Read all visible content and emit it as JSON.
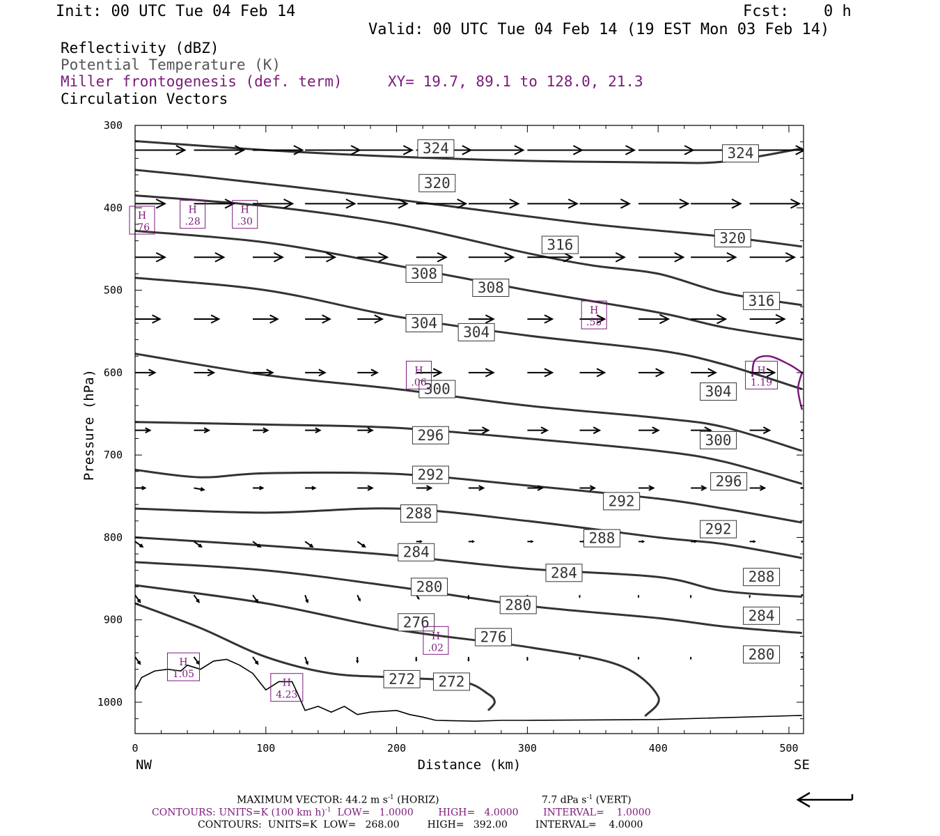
{
  "header": {
    "init": "Init: 00 UTC Tue 04 Feb 14",
    "fcst_label": "Fcst:",
    "fcst_value": "0 h",
    "valid": "Valid: 00 UTC Tue 04 Feb 14 (19 EST Mon 03 Feb 14)"
  },
  "fields": {
    "reflectivity": "Reflectivity (dBZ)",
    "theta": "Potential Temperature (K)",
    "miller": "Miller frontogenesis (def. term)",
    "xy": "XY=  19.7, 89.1 to 128.0, 21.3",
    "vectors": "Circulation Vectors"
  },
  "colors": {
    "theta": "#333333",
    "miller": "#7a1a7a",
    "text": "#000000"
  },
  "footer": {
    "max_vector": "MAXIMUM VECTOR:  44.2 m s",
    "max_vector_exp": "-1",
    "max_vector_horiz": " (HORIZ)",
    "max_vector_vert": "7.7 dPa s",
    "max_vector_vert_exp": "-1",
    "max_vector_vert_tail": " (VERT)",
    "contours1_a": "CONTOURS:  UNITS=K (100 km h)",
    "contours1_exp": "-1",
    "contours1_b": "  LOW=   1.0000        HIGH=   4.0000        INTERVAL=    1.0000",
    "contours2": "CONTOURS:  UNITS=K  LOW=   268.00         HIGH=   392.00         INTERVAL=    4.0000",
    "ref_arrow_icon": "reference-vector-arrow-icon"
  },
  "chart_data": {
    "type": "cross-section-contour",
    "xlabel": "Distance (km)",
    "ylabel": "Pressure (hPa)",
    "xlim": [
      0,
      510
    ],
    "ylim": [
      1040,
      300
    ],
    "x_ticks": [
      "0",
      "100",
      "200",
      "300",
      "400",
      "500"
    ],
    "y_ticks": [
      "300",
      "400",
      "500",
      "600",
      "700",
      "800",
      "900",
      "1000"
    ],
    "x_end_labels": {
      "left": "NW",
      "right": "SE"
    },
    "grid": false,
    "theta_contours": [
      {
        "theta": 324,
        "points": [
          [
            0,
            319
          ],
          [
            100,
            330
          ],
          [
            200,
            338
          ],
          [
            300,
            343
          ],
          [
            400,
            345
          ],
          [
            450,
            344
          ],
          [
            510,
            328
          ]
        ]
      },
      {
        "theta": 320,
        "points": [
          [
            0,
            354
          ],
          [
            50,
            362
          ],
          [
            150,
            380
          ],
          [
            250,
            400
          ],
          [
            350,
            420
          ],
          [
            450,
            435
          ],
          [
            510,
            447
          ]
        ]
      },
      {
        "theta": 316,
        "points": [
          [
            0,
            385
          ],
          [
            100,
            398
          ],
          [
            200,
            420
          ],
          [
            300,
            455
          ],
          [
            350,
            470
          ],
          [
            400,
            480
          ],
          [
            450,
            503
          ],
          [
            510,
            518
          ]
        ]
      },
      {
        "theta": 308,
        "points": [
          [
            0,
            428
          ],
          [
            100,
            442
          ],
          [
            200,
            470
          ],
          [
            300,
            500
          ],
          [
            400,
            527
          ],
          [
            450,
            545
          ],
          [
            510,
            560
          ]
        ]
      },
      {
        "theta": 304,
        "points": [
          [
            0,
            485
          ],
          [
            100,
            500
          ],
          [
            200,
            532
          ],
          [
            300,
            555
          ],
          [
            400,
            573
          ],
          [
            450,
            590
          ],
          [
            510,
            620
          ]
        ]
      },
      {
        "theta": 300,
        "points": [
          [
            0,
            577
          ],
          [
            100,
            603
          ],
          [
            200,
            620
          ],
          [
            300,
            640
          ],
          [
            400,
            655
          ],
          [
            450,
            666
          ],
          [
            510,
            695
          ]
        ]
      },
      {
        "theta": 296,
        "points": [
          [
            0,
            660
          ],
          [
            100,
            663
          ],
          [
            200,
            667
          ],
          [
            300,
            680
          ],
          [
            400,
            695
          ],
          [
            450,
            708
          ],
          [
            510,
            735
          ]
        ]
      },
      {
        "theta": 292,
        "points": [
          [
            0,
            718
          ],
          [
            50,
            727
          ],
          [
            100,
            722
          ],
          [
            200,
            723
          ],
          [
            300,
            737
          ],
          [
            400,
            753
          ],
          [
            450,
            765
          ],
          [
            510,
            782
          ]
        ]
      },
      {
        "theta": 288,
        "points": [
          [
            0,
            765
          ],
          [
            100,
            770
          ],
          [
            200,
            765
          ],
          [
            300,
            780
          ],
          [
            400,
            800
          ],
          [
            450,
            808
          ],
          [
            510,
            825
          ]
        ]
      },
      {
        "theta": 284,
        "points": [
          [
            0,
            800
          ],
          [
            100,
            810
          ],
          [
            200,
            822
          ],
          [
            300,
            838
          ],
          [
            400,
            848
          ],
          [
            450,
            865
          ],
          [
            510,
            872
          ]
        ]
      },
      {
        "theta": 280,
        "points": [
          [
            0,
            830
          ],
          [
            100,
            840
          ],
          [
            200,
            860
          ],
          [
            300,
            883
          ],
          [
            400,
            898
          ],
          [
            450,
            908
          ],
          [
            510,
            916
          ]
        ]
      },
      {
        "theta": 276,
        "points": [
          [
            0,
            858
          ],
          [
            100,
            880
          ],
          [
            200,
            912
          ],
          [
            300,
            933
          ],
          [
            370,
            955
          ],
          [
            400,
            993
          ],
          [
            390,
            1017
          ]
        ]
      },
      {
        "theta": 272,
        "points": [
          [
            0,
            880
          ],
          [
            50,
            910
          ],
          [
            100,
            945
          ],
          [
            150,
            965
          ],
          [
            200,
            970
          ],
          [
            250,
            975
          ],
          [
            270,
            990
          ],
          [
            275,
            1000
          ],
          [
            270,
            1010
          ]
        ]
      }
    ],
    "contour_labels": [
      {
        "text": "324",
        "x": 230,
        "p": 328
      },
      {
        "text": "324",
        "x": 463,
        "p": 334
      },
      {
        "text": "320",
        "x": 231,
        "p": 370
      },
      {
        "text": "316",
        "x": 325,
        "p": 445
      },
      {
        "text": "320",
        "x": 457,
        "p": 437
      },
      {
        "text": "316",
        "x": 479,
        "p": 513
      },
      {
        "text": "308",
        "x": 221,
        "p": 480
      },
      {
        "text": "308",
        "x": 272,
        "p": 497
      },
      {
        "text": "304",
        "x": 221,
        "p": 540
      },
      {
        "text": "304",
        "x": 261,
        "p": 551
      },
      {
        "text": "304",
        "x": 446,
        "p": 623
      },
      {
        "text": "300",
        "x": 231,
        "p": 620
      },
      {
        "text": "300",
        "x": 446,
        "p": 682
      },
      {
        "text": "296",
        "x": 226,
        "p": 676
      },
      {
        "text": "296",
        "x": 454,
        "p": 732
      },
      {
        "text": "292",
        "x": 226,
        "p": 724
      },
      {
        "text": "292",
        "x": 372,
        "p": 756
      },
      {
        "text": "292",
        "x": 446,
        "p": 790
      },
      {
        "text": "288",
        "x": 217,
        "p": 771
      },
      {
        "text": "288",
        "x": 357,
        "p": 801
      },
      {
        "text": "288",
        "x": 479,
        "p": 848
      },
      {
        "text": "284",
        "x": 215,
        "p": 818
      },
      {
        "text": "284",
        "x": 328,
        "p": 843
      },
      {
        "text": "284",
        "x": 479,
        "p": 895
      },
      {
        "text": "280",
        "x": 225,
        "p": 860
      },
      {
        "text": "280",
        "x": 293,
        "p": 882
      },
      {
        "text": "280",
        "x": 479,
        "p": 942
      },
      {
        "text": "276",
        "x": 215,
        "p": 903
      },
      {
        "text": "276",
        "x": 274,
        "p": 921
      },
      {
        "text": "272",
        "x": 204,
        "p": 972
      },
      {
        "text": "272",
        "x": 242,
        "p": 975
      }
    ],
    "frontogenesis_maxima": [
      {
        "label": "H",
        "value": ".76",
        "x": 3,
        "p": 415
      },
      {
        "label": "H",
        "value": ".28",
        "x": 44,
        "p": 408
      },
      {
        "label": "H",
        "value": ".30",
        "x": 84,
        "p": 408
      },
      {
        "label": "H",
        "value": ".55",
        "x": 351,
        "p": 530
      },
      {
        "label": "H",
        "value": ".06",
        "x": 217,
        "p": 603
      },
      {
        "label": "H",
        "value": "1.19",
        "x": 479,
        "p": 603
      },
      {
        "label": "H",
        "value": ".02",
        "x": 230,
        "p": 925
      },
      {
        "label": "H",
        "value": "1.05",
        "x": 37,
        "p": 957
      },
      {
        "label": "H",
        "value": "4.23",
        "x": 116,
        "p": 982
      }
    ],
    "terrain": [
      [
        0,
        985
      ],
      [
        5,
        970
      ],
      [
        15,
        962
      ],
      [
        25,
        960
      ],
      [
        35,
        962
      ],
      [
        40,
        955
      ],
      [
        50,
        960
      ],
      [
        60,
        950
      ],
      [
        70,
        948
      ],
      [
        80,
        955
      ],
      [
        90,
        965
      ],
      [
        100,
        985
      ],
      [
        110,
        975
      ],
      [
        120,
        975
      ],
      [
        125,
        992
      ],
      [
        130,
        1010
      ],
      [
        140,
        1005
      ],
      [
        150,
        1012
      ],
      [
        160,
        1005
      ],
      [
        170,
        1015
      ],
      [
        180,
        1012
      ],
      [
        200,
        1010
      ],
      [
        210,
        1015
      ],
      [
        220,
        1018
      ],
      [
        230,
        1022
      ],
      [
        260,
        1023
      ],
      [
        280,
        1022
      ],
      [
        300,
        1022
      ],
      [
        400,
        1021
      ],
      [
        510,
        1016
      ]
    ],
    "vector_rows": [
      {
        "p": 330,
        "x": [
          0,
          45,
          90,
          130,
          170,
          215,
          255,
          300,
          340,
          385,
          425,
          470,
          510
        ],
        "dx": [
          1.0,
          1.0,
          1.0,
          1.1,
          1.1,
          1.1,
          1.1,
          1.1,
          1.1,
          1.1,
          1.1,
          1.1,
          1.1
        ],
        "dp": [
          0,
          0,
          0,
          0,
          0,
          0,
          0,
          0,
          0,
          0,
          0,
          0,
          0
        ]
      },
      {
        "p": 395,
        "x": [
          0,
          45,
          90,
          130,
          170,
          215,
          255,
          300,
          340,
          385,
          425,
          470,
          510
        ],
        "dx": [
          0.6,
          0.8,
          0.8,
          1.0,
          1.0,
          1.0,
          1.0,
          1.0,
          1.0,
          1.0,
          1.0,
          1.0,
          1.0
        ],
        "dp": [
          0,
          0,
          0,
          0,
          0,
          0,
          0,
          0,
          0,
          0,
          0,
          0,
          0
        ]
      },
      {
        "p": 460,
        "x": [
          0,
          45,
          90,
          130,
          170,
          215,
          255,
          300,
          340,
          385,
          425,
          470,
          510
        ],
        "dx": [
          0.6,
          0.6,
          0.6,
          0.6,
          0.6,
          0.6,
          0.9,
          0.9,
          0.9,
          0.9,
          0.9,
          0.9,
          0.9
        ],
        "dp": [
          0,
          0,
          0,
          0,
          0,
          0,
          0,
          0,
          0,
          0,
          0,
          0,
          0
        ]
      },
      {
        "p": 535,
        "x": [
          0,
          45,
          90,
          130,
          170,
          215,
          255,
          300,
          340,
          385,
          425,
          470,
          510
        ],
        "dx": [
          0.5,
          0.5,
          0.5,
          0.5,
          0.5,
          0.5,
          0.5,
          0.5,
          0.5,
          0.6,
          0.7,
          0.7,
          0.0
        ],
        "dp": [
          0,
          0,
          0,
          0,
          0,
          0,
          0,
          0,
          0,
          0,
          0,
          0,
          0
        ]
      },
      {
        "p": 600,
        "x": [
          0,
          45,
          90,
          130,
          170,
          215,
          255,
          300,
          340,
          385,
          425,
          470,
          510
        ],
        "dx": [
          0.4,
          0.4,
          0.4,
          0.4,
          0.4,
          0.5,
          0.5,
          0.5,
          0.5,
          0.5,
          0.5,
          0.5,
          0.0
        ],
        "dp": [
          0,
          0,
          0,
          0,
          0,
          0,
          0,
          0,
          0,
          0,
          0,
          0,
          0
        ]
      },
      {
        "p": 670,
        "x": [
          0,
          45,
          90,
          130,
          170,
          215,
          255,
          300,
          340,
          385,
          425,
          470,
          510
        ],
        "dx": [
          0.3,
          0.3,
          0.3,
          0.3,
          0.3,
          0.4,
          0.4,
          0.4,
          0.4,
          0.4,
          0.4,
          0.4,
          0.0
        ],
        "dp": [
          0,
          0,
          0,
          0,
          0,
          0,
          0,
          0,
          0,
          0,
          0,
          0,
          0
        ]
      },
      {
        "p": 740,
        "x": [
          0,
          45,
          90,
          130,
          170,
          215,
          255,
          300,
          340,
          385,
          425,
          470,
          510
        ],
        "dx": [
          0.2,
          0.2,
          0.2,
          0.2,
          0.3,
          0.3,
          0.3,
          0.3,
          0.3,
          0.3,
          0.3,
          0.3,
          0.0
        ],
        "dp": [
          0,
          0.5,
          0,
          0,
          0,
          0,
          0,
          0,
          0,
          0,
          0,
          0,
          0
        ]
      },
      {
        "p": 805,
        "x": [
          0,
          45,
          90,
          130,
          170,
          215,
          255,
          300,
          340,
          385,
          425,
          470,
          510
        ],
        "dx": [
          0.15,
          0.15,
          0.15,
          0.15,
          0.15,
          0.1,
          0.1,
          0.1,
          0.1,
          0.1,
          0.1,
          0.1,
          0.0
        ],
        "dp": [
          1.5,
          1.5,
          1.5,
          1.5,
          1.5,
          0,
          0,
          0,
          0,
          0,
          0,
          0,
          0
        ]
      },
      {
        "p": 870,
        "x": [
          0,
          45,
          90,
          130,
          170,
          215,
          255,
          300,
          340,
          385,
          425,
          470,
          510
        ],
        "dx": [
          0.1,
          0.1,
          0.1,
          0.05,
          0.05,
          0.05,
          0,
          0,
          0,
          0,
          0,
          0,
          0
        ],
        "dp": [
          2.0,
          2.0,
          2.0,
          2.0,
          1.5,
          1.0,
          1.0,
          0.8,
          0.5,
          0.5,
          0.5,
          0.5,
          0
        ]
      },
      {
        "p": 945,
        "x": [
          0,
          45,
          90,
          130,
          170,
          215,
          255,
          300,
          340,
          385,
          425,
          470,
          510
        ],
        "dx": [
          0.1,
          0.1,
          0.1,
          0.05,
          0,
          0,
          0,
          0,
          0,
          0,
          0,
          0,
          0
        ],
        "dp": [
          2.0,
          2.0,
          2.0,
          2.0,
          1.5,
          1.0,
          1.0,
          0.8,
          0.5,
          0.5,
          0.5,
          0.5,
          0
        ]
      }
    ],
    "vector_scale_km_per_unit": 38
  }
}
